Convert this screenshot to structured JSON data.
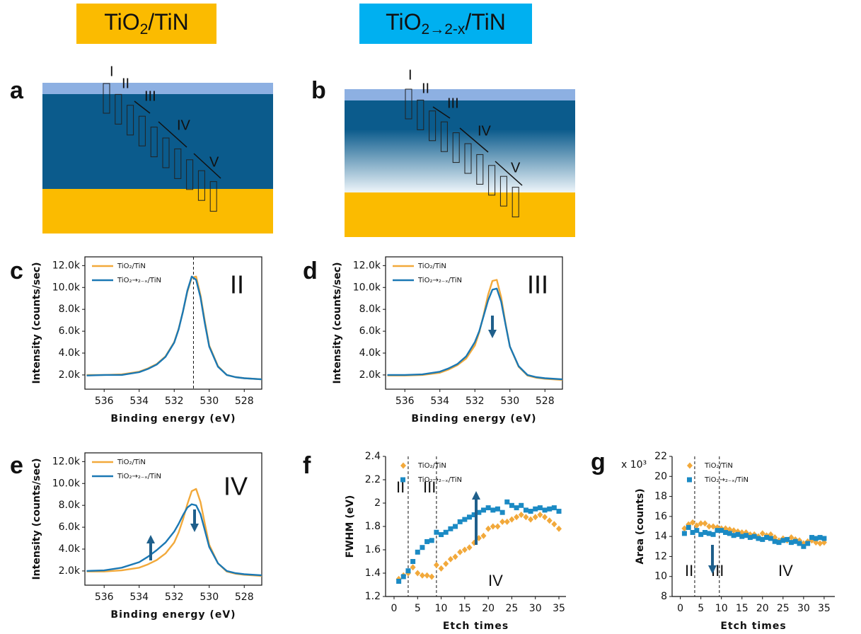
{
  "headers": [
    {
      "text": "TiO",
      "sub": "2",
      "rest": "/TiN",
      "color": "#fbbb00"
    },
    {
      "text": "TiO",
      "sub": "2→2-x",
      "rest": "/TiN",
      "color": "#00b0f0"
    }
  ],
  "diagrams": [
    {
      "panel": "a",
      "labels": [
        "I",
        "II",
        "III",
        "IV",
        "V"
      ]
    },
    {
      "panel": "b",
      "labels": [
        "I",
        "II",
        "III",
        "IV",
        "V"
      ]
    }
  ],
  "chart_data": [
    {
      "type": "line",
      "panel": "c",
      "label": "II",
      "x_label": "Binding energy (eV)",
      "y_label": "Intensity (counts/sec)",
      "x": [
        537,
        536,
        535,
        534,
        533.5,
        533,
        532.5,
        532,
        531.75,
        531.5,
        531.25,
        531,
        530.75,
        530.5,
        530.25,
        530,
        529.5,
        529,
        528.5,
        528,
        527
      ],
      "xlim": [
        537.1,
        527
      ],
      "xticks": [
        536,
        534,
        532,
        530,
        528
      ],
      "ylim": [
        700,
        12800
      ],
      "yticks": [
        {
          "value": 2000,
          "label": "2.0k"
        },
        {
          "value": 4000,
          "label": "4.0k"
        },
        {
          "value": 6000,
          "label": "6.0k"
        },
        {
          "value": 8000,
          "label": "8.0k"
        },
        {
          "value": 10000,
          "label": "10.0k"
        },
        {
          "value": 12000,
          "label": "12.0k"
        }
      ],
      "vlines": [
        530.9
      ],
      "legend": "upper left",
      "series": [
        {
          "name": "TiO₂/TiN",
          "color": "#f2a93b",
          "values": [
            2000,
            2000,
            2050,
            2300,
            2600,
            3000,
            3700,
            5000,
            6200,
            7800,
            9600,
            10900,
            11000,
            9300,
            6900,
            4700,
            2800,
            2000,
            1800,
            1700,
            1600
          ]
        },
        {
          "name": "TiO₂→₂₋ₓ/TiN",
          "color": "#1b78b4",
          "values": [
            1950,
            2000,
            2000,
            2250,
            2550,
            2950,
            3650,
            4950,
            6150,
            7800,
            9700,
            11000,
            10700,
            9100,
            6700,
            4600,
            2750,
            2000,
            1800,
            1700,
            1600
          ]
        }
      ]
    },
    {
      "type": "line",
      "panel": "d",
      "label": "III",
      "x_label": "Binding energy (eV)",
      "y_label": "Intensity (counts/sec)",
      "x": [
        537,
        536,
        535,
        534,
        533.5,
        533,
        532.5,
        532,
        531.75,
        531.5,
        531.25,
        531,
        530.75,
        530.5,
        530.25,
        530,
        529.5,
        529,
        528.5,
        528,
        527
      ],
      "xlim": [
        537.1,
        527
      ],
      "xticks": [
        536,
        534,
        532,
        530,
        528
      ],
      "ylim": [
        700,
        12800
      ],
      "yticks": [
        {
          "value": 2000,
          "label": "2.0k"
        },
        {
          "value": 4000,
          "label": "4.0k"
        },
        {
          "value": 6000,
          "label": "6.0k"
        },
        {
          "value": 8000,
          "label": "8.0k"
        },
        {
          "value": 10000,
          "label": "10.0k"
        },
        {
          "value": 12000,
          "label": "12.0k"
        }
      ],
      "legend": "upper left",
      "series": [
        {
          "name": "TiO₂/TiN",
          "color": "#f2a93b",
          "values": [
            1950,
            1950,
            2000,
            2200,
            2500,
            2900,
            3500,
            4700,
            5900,
            7500,
            9300,
            10600,
            10700,
            9100,
            6700,
            4600,
            2750,
            1950,
            1750,
            1650,
            1550
          ]
        },
        {
          "name": "TiO₂→₂₋ₓ/TiN",
          "color": "#1b78b4",
          "values": [
            2000,
            2000,
            2050,
            2300,
            2600,
            3000,
            3700,
            5000,
            6000,
            7400,
            8800,
            9800,
            9900,
            8700,
            6600,
            4600,
            2800,
            2000,
            1800,
            1700,
            1600
          ]
        }
      ]
    },
    {
      "type": "line",
      "panel": "e",
      "label": "IV",
      "x_label": "Binding energy (eV)",
      "y_label": "Intensity (counts/sec)",
      "x": [
        537,
        536,
        535,
        534,
        533.5,
        533,
        532.5,
        532,
        531.75,
        531.5,
        531.25,
        531,
        530.75,
        530.5,
        530.25,
        530,
        529.5,
        529,
        528.5,
        528,
        527
      ],
      "xlim": [
        537.1,
        527
      ],
      "xticks": [
        536,
        534,
        532,
        530,
        528
      ],
      "ylim": [
        700,
        12800
      ],
      "yticks": [
        {
          "value": 2000,
          "label": "2.0k"
        },
        {
          "value": 4000,
          "label": "4.0k"
        },
        {
          "value": 6000,
          "label": "6.0k"
        },
        {
          "value": 8000,
          "label": "8.0k"
        },
        {
          "value": 10000,
          "label": "10.0k"
        },
        {
          "value": 12000,
          "label": "12.0k"
        }
      ],
      "legend": "upper left",
      "series": [
        {
          "name": "TiO₂/TiN",
          "color": "#f2a93b",
          "values": [
            1950,
            1950,
            2050,
            2300,
            2600,
            3000,
            3600,
            4600,
            5500,
            6700,
            8100,
            9300,
            9500,
            8300,
            6300,
            4400,
            2700,
            1950,
            1750,
            1650,
            1550
          ]
        },
        {
          "name": "TiO₂→₂₋ₓ/TiN",
          "color": "#1b78b4",
          "values": [
            2000,
            2050,
            2300,
            2800,
            3300,
            3900,
            4600,
            5600,
            6300,
            7100,
            7800,
            8100,
            8000,
            7200,
            5700,
            4200,
            2700,
            2000,
            1800,
            1700,
            1600
          ]
        }
      ]
    },
    {
      "type": "scatter",
      "panel": "f",
      "x_label": "Etch times",
      "y_label": "FWHM (eV)",
      "x": [
        1,
        2,
        3,
        4,
        5,
        6,
        7,
        8,
        9,
        10,
        11,
        12,
        13,
        14,
        15,
        16,
        17,
        18,
        19,
        20,
        21,
        22,
        23,
        24,
        25,
        26,
        27,
        28,
        29,
        30,
        31,
        32,
        33,
        34,
        35
      ],
      "xlim": [
        -1.8,
        36.5
      ],
      "xticks": [
        0,
        5,
        10,
        15,
        20,
        25,
        30,
        35
      ],
      "ylim": [
        1.2,
        2.4
      ],
      "yticks": [
        1.2,
        1.4,
        1.6,
        1.8,
        2.0,
        2.2,
        2.4
      ],
      "vlines": [
        3,
        9
      ],
      "annotations": [
        "II",
        "III",
        "IV"
      ],
      "legend": "upper left",
      "series": [
        {
          "name": "TiO₂/TiN",
          "color": "#f2a93b",
          "marker": "diamond",
          "values": [
            1.35,
            1.38,
            1.4,
            1.45,
            1.4,
            1.38,
            1.38,
            1.37,
            1.47,
            1.44,
            1.48,
            1.52,
            1.54,
            1.58,
            1.6,
            1.62,
            1.66,
            1.7,
            1.72,
            1.78,
            1.8,
            1.8,
            1.84,
            1.84,
            1.86,
            1.88,
            1.9,
            1.88,
            1.86,
            1.88,
            1.9,
            1.88,
            1.85,
            1.82,
            1.78
          ]
        },
        {
          "name": "TiO₂→₂₋ₓ/TiN",
          "color": "#1b8ac4",
          "marker": "square",
          "values": [
            1.33,
            1.37,
            1.42,
            1.5,
            1.58,
            1.62,
            1.67,
            1.68,
            1.75,
            1.73,
            1.75,
            1.78,
            1.8,
            1.84,
            1.86,
            1.88,
            1.9,
            1.92,
            1.94,
            1.96,
            1.94,
            1.95,
            1.92,
            2.01,
            1.98,
            1.96,
            1.98,
            1.94,
            1.93,
            1.95,
            1.96,
            1.94,
            1.95,
            1.96,
            1.93
          ]
        }
      ]
    },
    {
      "type": "scatter",
      "panel": "g",
      "x_label": "Etch times",
      "y_label": "Area (counts)",
      "multiplier": "x 10³",
      "x": [
        1,
        2,
        3,
        4,
        5,
        6,
        7,
        8,
        9,
        10,
        11,
        12,
        13,
        14,
        15,
        16,
        17,
        18,
        19,
        20,
        21,
        22,
        23,
        24,
        25,
        26,
        27,
        28,
        29,
        30,
        31,
        32,
        33,
        34,
        35
      ],
      "xlim": [
        -2,
        37.6
      ],
      "xticks": [
        0,
        5,
        10,
        15,
        20,
        25,
        30,
        35
      ],
      "ylim": [
        8,
        22
      ],
      "yticks": [
        8,
        10,
        12,
        14,
        16,
        18,
        20,
        22
      ],
      "vlines": [
        3.5,
        9.5
      ],
      "annotations": [
        "II",
        "III",
        "IV"
      ],
      "legend": "upper left",
      "series": [
        {
          "name": "TiO₂/TiN",
          "color": "#f2a93b",
          "marker": "diamond",
          "values": [
            14.8,
            15.2,
            15.4,
            15.1,
            15.3,
            15.3,
            15.0,
            15.0,
            14.9,
            14.8,
            14.8,
            14.7,
            14.6,
            14.5,
            14.4,
            14.4,
            14.2,
            14.2,
            14.0,
            14.3,
            14.1,
            14.2,
            13.9,
            13.6,
            13.8,
            13.6,
            13.9,
            13.7,
            13.6,
            13.3,
            13.5,
            13.6,
            13.4,
            13.3,
            13.4
          ]
        },
        {
          "name": "TiO₂→₂₋ₓ/TiN",
          "color": "#1b8ac4",
          "marker": "square",
          "values": [
            14.3,
            14.9,
            14.4,
            14.6,
            14.2,
            14.4,
            14.3,
            14.2,
            14.6,
            14.6,
            14.4,
            14.3,
            14.1,
            14.2,
            14.0,
            14.1,
            13.9,
            14.0,
            13.8,
            13.7,
            13.9,
            13.8,
            13.5,
            13.4,
            13.6,
            13.7,
            13.4,
            13.5,
            13.3,
            13.0,
            13.3,
            13.9,
            13.8,
            13.9,
            13.8
          ]
        }
      ]
    }
  ]
}
